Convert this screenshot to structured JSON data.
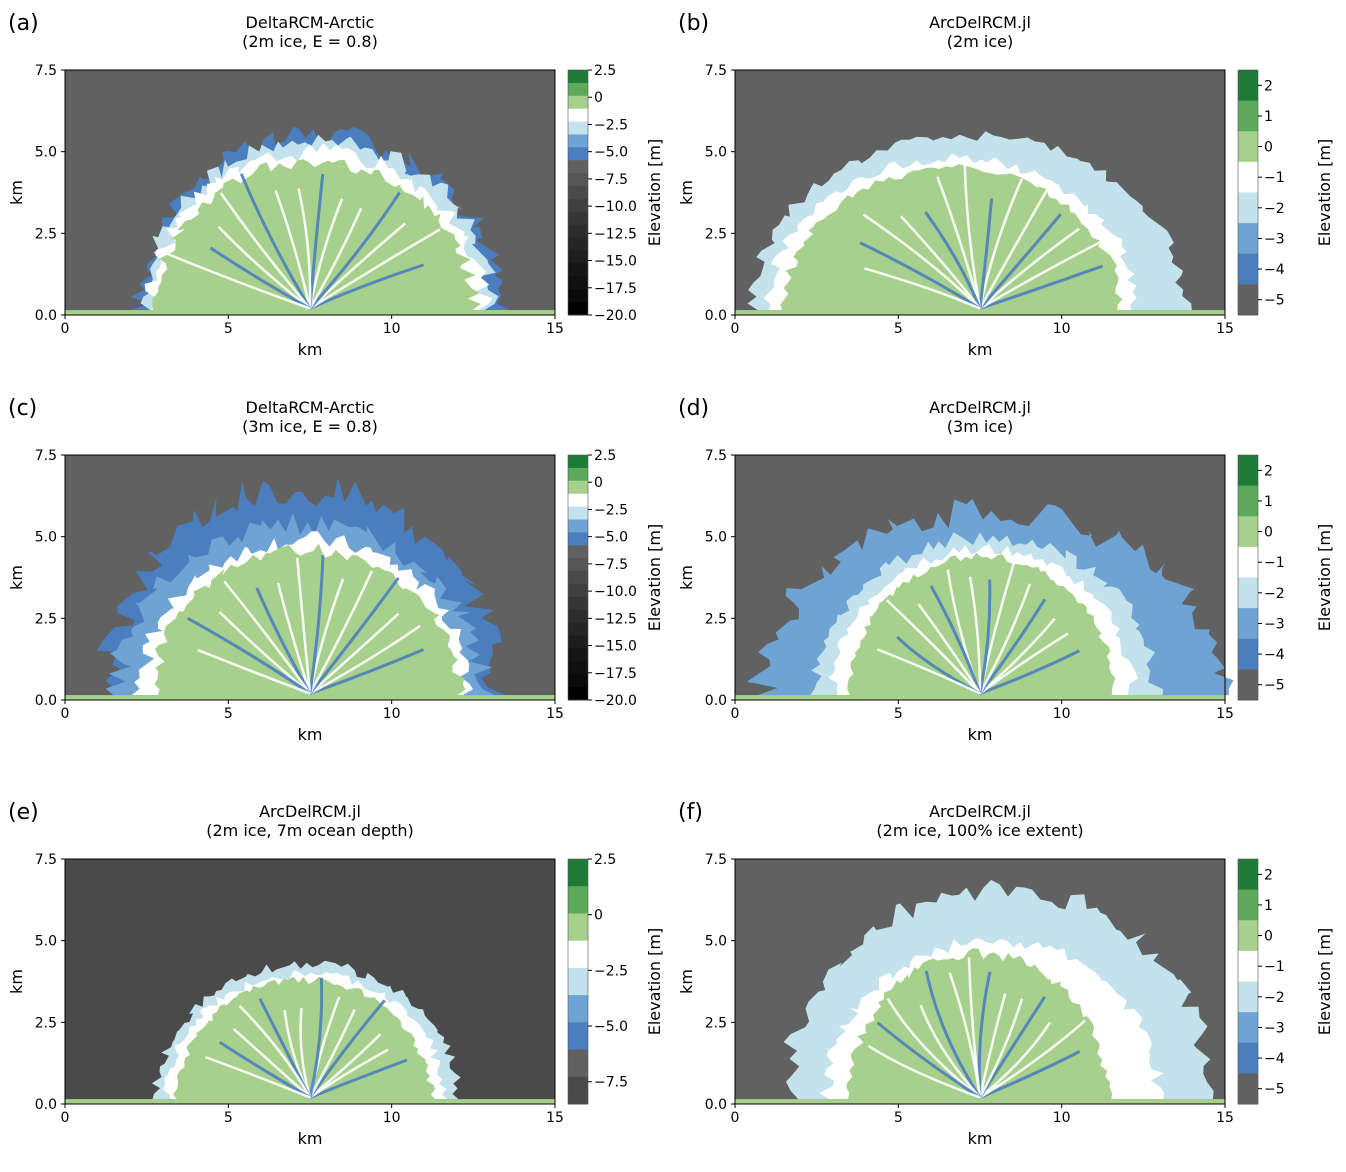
{
  "colors": {
    "ocean": "#616161",
    "ocean_deep_e": "#4a4a4a",
    "land": "#a8d08d",
    "channel": "#ffffff",
    "shelf": "#c4e2ec",
    "shallow": "#6ea3d3",
    "deep": "#4a7ebf",
    "green_mid": "#5daa5d",
    "green_dark": "#1f7a37"
  },
  "chart_data": [
    {
      "type": "heatmap",
      "panel_label": "(a)",
      "title": "DeltaRCM-Arctic",
      "subtitle": "(2m ice, E = 0.8)",
      "xlabel": "km",
      "ylabel": "km",
      "xlim": [
        0,
        15
      ],
      "ylim": [
        0,
        7.5
      ],
      "x_ticks": [
        "0",
        "5",
        "10",
        "15"
      ],
      "y_ticks": [
        "0.0",
        "2.5",
        "5.0",
        "7.5"
      ],
      "colorbar": {
        "label": "Elevation [m]",
        "ticks": [
          "2.5",
          "0",
          "−2.5",
          "−5.0",
          "−7.5",
          "−10.0",
          "−12.5",
          "−15.0",
          "−17.5",
          "−20.0"
        ],
        "range": [
          -20,
          2.5
        ],
        "colors": [
          "#1f7a37",
          "#5daa5d",
          "#a8d08d",
          "#ffffff",
          "#c4e2ec",
          "#6ea3d3",
          "#4a7ebf",
          "#616161",
          "#555555",
          "#4a4a4a",
          "#404040",
          "#363636",
          "#2d2d2d",
          "#252525",
          "#1d1d1d",
          "#161616",
          "#101010",
          "#0a0a0a",
          "#000000"
        ]
      }
    },
    {
      "type": "heatmap",
      "panel_label": "(b)",
      "title": "ArcDelRCM.jl",
      "subtitle": "(2m ice)",
      "xlabel": "km",
      "ylabel": "km",
      "xlim": [
        0,
        15
      ],
      "ylim": [
        0,
        7.5
      ],
      "x_ticks": [
        "0",
        "5",
        "10",
        "15"
      ],
      "y_ticks": [
        "0.0",
        "2.5",
        "5.0",
        "7.5"
      ],
      "colorbar": {
        "label": "Elevation [m]",
        "ticks": [
          "2",
          "1",
          "0",
          "−1",
          "−2",
          "−3",
          "−4",
          "−5"
        ],
        "range": [
          -5.5,
          2.5
        ],
        "colors": [
          "#1f7a37",
          "#5daa5d",
          "#a8d08d",
          "#ffffff",
          "#c4e2ec",
          "#6ea3d3",
          "#4a7ebf",
          "#616161"
        ]
      }
    },
    {
      "type": "heatmap",
      "panel_label": "(c)",
      "title": "DeltaRCM-Arctic",
      "subtitle": "(3m ice, E = 0.8)",
      "xlabel": "km",
      "ylabel": "km",
      "xlim": [
        0,
        15
      ],
      "ylim": [
        0,
        7.5
      ],
      "x_ticks": [
        "0",
        "5",
        "10",
        "15"
      ],
      "y_ticks": [
        "0.0",
        "2.5",
        "5.0",
        "7.5"
      ],
      "colorbar": {
        "label": "Elevation [m]",
        "ticks": [
          "2.5",
          "0",
          "−2.5",
          "−5.0",
          "−7.5",
          "−10.0",
          "−12.5",
          "−15.0",
          "−17.5",
          "−20.0"
        ],
        "range": [
          -20,
          2.5
        ],
        "colors": [
          "#1f7a37",
          "#5daa5d",
          "#a8d08d",
          "#ffffff",
          "#c4e2ec",
          "#6ea3d3",
          "#4a7ebf",
          "#616161",
          "#555555",
          "#4a4a4a",
          "#404040",
          "#363636",
          "#2d2d2d",
          "#252525",
          "#1d1d1d",
          "#161616",
          "#101010",
          "#0a0a0a",
          "#000000"
        ]
      }
    },
    {
      "type": "heatmap",
      "panel_label": "(d)",
      "title": "ArcDelRCM.jl",
      "subtitle": "(3m ice)",
      "xlabel": "km",
      "ylabel": "km",
      "xlim": [
        0,
        15
      ],
      "ylim": [
        0,
        7.5
      ],
      "x_ticks": [
        "0",
        "5",
        "10",
        "15"
      ],
      "y_ticks": [
        "0.0",
        "2.5",
        "5.0",
        "7.5"
      ],
      "colorbar": {
        "label": "Elevation [m]",
        "ticks": [
          "2",
          "1",
          "0",
          "−1",
          "−2",
          "−3",
          "−4",
          "−5"
        ],
        "range": [
          -5.5,
          2.5
        ],
        "colors": [
          "#1f7a37",
          "#5daa5d",
          "#a8d08d",
          "#ffffff",
          "#c4e2ec",
          "#6ea3d3",
          "#4a7ebf",
          "#616161"
        ]
      }
    },
    {
      "type": "heatmap",
      "panel_label": "(e)",
      "title": "ArcDelRCM.jl",
      "subtitle": "(2m ice, 7m ocean depth)",
      "xlabel": "km",
      "ylabel": "km",
      "xlim": [
        0,
        15
      ],
      "ylim": [
        0,
        7.5
      ],
      "x_ticks": [
        "0",
        "5",
        "10",
        "15"
      ],
      "y_ticks": [
        "0.0",
        "2.5",
        "5.0",
        "7.5"
      ],
      "colorbar": {
        "label": "Elevation [m]",
        "ticks": [
          "2.5",
          "0",
          "−2.5",
          "−5.0",
          "−7.5"
        ],
        "range": [
          -8.5,
          2.5
        ],
        "colors": [
          "#1f7a37",
          "#5daa5d",
          "#a8d08d",
          "#ffffff",
          "#c4e2ec",
          "#6ea3d3",
          "#4a7ebf",
          "#616161",
          "#4a4a4a"
        ]
      }
    },
    {
      "type": "heatmap",
      "panel_label": "(f)",
      "title": "ArcDelRCM.jl",
      "subtitle": "(2m ice, 100% ice extent)",
      "xlabel": "km",
      "ylabel": "km",
      "xlim": [
        0,
        15
      ],
      "ylim": [
        0,
        7.5
      ],
      "x_ticks": [
        "0",
        "5",
        "10",
        "15"
      ],
      "y_ticks": [
        "0.0",
        "2.5",
        "5.0",
        "7.5"
      ],
      "colorbar": {
        "label": "Elevation [m]",
        "ticks": [
          "2",
          "1",
          "0",
          "−1",
          "−2",
          "−3",
          "−4",
          "−5"
        ],
        "range": [
          -5.5,
          2.5
        ],
        "colors": [
          "#1f7a37",
          "#5daa5d",
          "#a8d08d",
          "#ffffff",
          "#c4e2ec",
          "#6ea3d3",
          "#4a7ebf",
          "#616161"
        ]
      }
    }
  ]
}
